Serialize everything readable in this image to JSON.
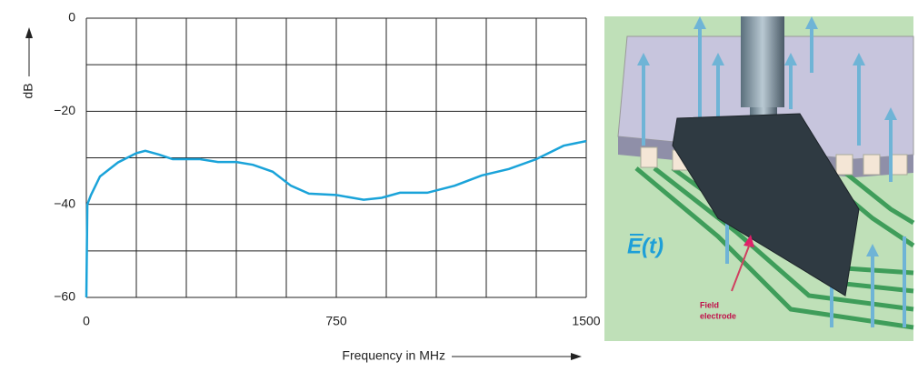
{
  "chart_data": {
    "type": "line",
    "x_label": "Frequency in MHz",
    "y_label": "dB",
    "x": [
      0,
      3,
      14,
      41,
      95,
      150,
      177,
      218,
      259,
      341,
      395,
      450,
      500,
      559,
      614,
      668,
      750,
      832,
      886,
      941,
      1023,
      1105,
      1186,
      1268,
      1350,
      1432,
      1500
    ],
    "values": [
      -60,
      -40,
      -38,
      -34,
      -31,
      -29,
      -28.5,
      -29.3,
      -30.3,
      -30.3,
      -30.9,
      -30.9,
      -31.5,
      -33,
      -36,
      -37.7,
      -38,
      -39,
      -38.6,
      -37.5,
      -37.5,
      -36,
      -33.8,
      -32.4,
      -30.3,
      -27.4,
      -26.4
    ],
    "color": "#1aa3d9",
    "xlim": [
      0,
      1500
    ],
    "xticks": [
      0,
      750,
      1500
    ],
    "ylim": [
      -60,
      0
    ],
    "yticks": [
      0,
      {
        "value": -20,
        "label": "−20"
      },
      {
        "value": -40,
        "label": "−40"
      },
      {
        "value": -60,
        "label": "−60"
      }
    ],
    "xgrid": [
      0,
      150,
      300,
      450,
      600,
      750,
      900,
      1050,
      1200,
      1350,
      1500
    ],
    "ygrid": [
      0,
      -10,
      -20,
      -30,
      -40,
      -50,
      -60
    ],
    "grid": true
  },
  "illustration": {
    "field_label": "E(t)",
    "electrode_label": [
      "Field",
      "electrode"
    ]
  }
}
